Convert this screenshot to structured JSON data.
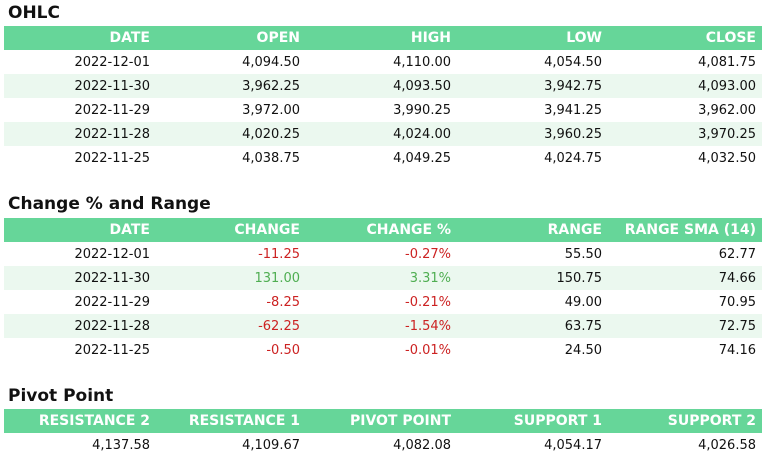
{
  "ohlc": {
    "title": "OHLC",
    "headers": [
      "DATE",
      "OPEN",
      "HIGH",
      "LOW",
      "CLOSE"
    ],
    "rows": [
      [
        "2022-12-01",
        "4,094.50",
        "4,110.00",
        "4,054.50",
        "4,081.75"
      ],
      [
        "2022-11-30",
        "3,962.25",
        "4,093.50",
        "3,942.75",
        "4,093.00"
      ],
      [
        "2022-11-29",
        "3,972.00",
        "3,990.25",
        "3,941.25",
        "3,962.00"
      ],
      [
        "2022-11-28",
        "4,020.25",
        "4,024.00",
        "3,960.25",
        "3,970.25"
      ],
      [
        "2022-11-25",
        "4,038.75",
        "4,049.25",
        "4,024.75",
        "4,032.50"
      ]
    ]
  },
  "change": {
    "title": "Change % and Range",
    "headers": [
      "DATE",
      "CHANGE",
      "CHANGE %",
      "RANGE",
      "RANGE SMA (14)"
    ],
    "rows": [
      [
        "2022-12-01",
        "-11.25",
        "-0.27%",
        "55.50",
        "62.77"
      ],
      [
        "2022-11-30",
        "131.00",
        "3.31%",
        "150.75",
        "74.66"
      ],
      [
        "2022-11-29",
        "-8.25",
        "-0.21%",
        "49.00",
        "70.95"
      ],
      [
        "2022-11-28",
        "-62.25",
        "-1.54%",
        "63.75",
        "72.75"
      ],
      [
        "2022-11-25",
        "-0.50",
        "-0.01%",
        "24.50",
        "74.16"
      ]
    ]
  },
  "pivot": {
    "title": "Pivot Point",
    "headers": [
      "RESISTANCE 2",
      "RESISTANCE 1",
      "PIVOT POINT",
      "SUPPORT 1",
      "SUPPORT 2"
    ],
    "rows": [
      [
        "4,137.58",
        "4,109.67",
        "4,082.08",
        "4,054.17",
        "4,026.58"
      ]
    ]
  },
  "colors": {
    "header_bg": "#66d699",
    "alt_row_bg": "#ebf8ef",
    "negative": "#cc2222",
    "positive": "#4fae52"
  }
}
